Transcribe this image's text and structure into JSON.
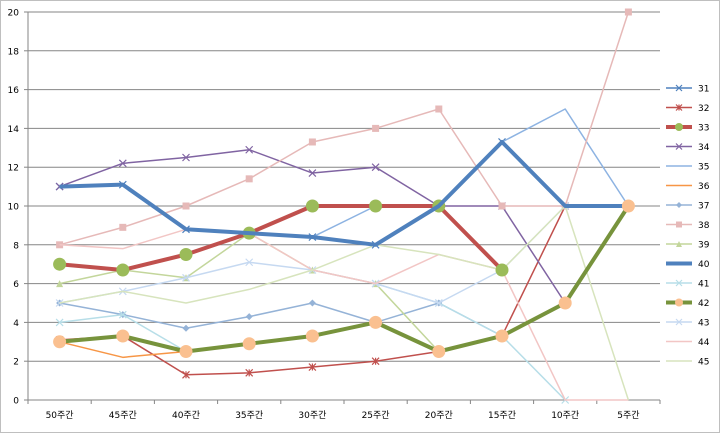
{
  "chart_data": {
    "type": "line",
    "title": "",
    "xlabel": "",
    "ylabel": "",
    "ylim": [
      0,
      20
    ],
    "yticks": [
      "0",
      "2",
      "4",
      "6",
      "8",
      "10",
      "12",
      "14",
      "16",
      "18",
      "20"
    ],
    "categories": [
      "50주간",
      "45주간",
      "40주간",
      "35주간",
      "30주간",
      "25주간",
      "20주간",
      "15주간",
      "10주간",
      "5주간"
    ],
    "grid": true,
    "legend_position": "right",
    "series": [
      {
        "name": "31",
        "color": "#4f81bd",
        "marker": "x",
        "width": 1.5,
        "values": [
          11,
          11.1,
          8.8,
          8.6,
          8.4,
          8,
          10,
          13.3,
          10,
          10
        ]
      },
      {
        "name": "32",
        "color": "#c0504d",
        "marker": "star",
        "width": 1.5,
        "values": [
          3.1,
          3.3,
          1.3,
          1.4,
          1.7,
          2,
          2.5,
          3.3,
          10,
          null
        ]
      },
      {
        "name": "33",
        "color": "#c0504d",
        "marker": "circle",
        "width": 4,
        "values": [
          7,
          6.7,
          7.5,
          8.6,
          10,
          10,
          10,
          6.7,
          null,
          null
        ]
      },
      {
        "name": "34",
        "color": "#8064a2",
        "marker": "x",
        "width": 1.5,
        "values": [
          11,
          12.2,
          12.5,
          12.9,
          11.7,
          12,
          10,
          10,
          5,
          null
        ]
      },
      {
        "name": "35",
        "color": "#8db3e2",
        "marker": "none",
        "width": 1.5,
        "values": [
          null,
          null,
          null,
          null,
          8.4,
          10,
          10,
          13.3,
          15,
          10
        ]
      },
      {
        "name": "36",
        "color": "#f79646",
        "marker": "none",
        "width": 1.5,
        "values": [
          3,
          2.2,
          2.5,
          null,
          null,
          null,
          null,
          null,
          null,
          null
        ]
      },
      {
        "name": "37",
        "color": "#95b3d7",
        "marker": "diamond",
        "width": 1.5,
        "values": [
          5,
          4.4,
          3.7,
          4.3,
          5,
          4,
          5,
          3.3,
          null,
          null
        ]
      },
      {
        "name": "38",
        "color": "#e6b9b8",
        "marker": "square",
        "width": 1.5,
        "values": [
          8,
          8.9,
          10,
          11.4,
          13.3,
          14,
          15,
          10,
          10,
          20
        ]
      },
      {
        "name": "39",
        "color": "#c3d69b",
        "marker": "triangle",
        "width": 1.5,
        "values": [
          6,
          6.7,
          6.3,
          8.6,
          6.7,
          6,
          2.5,
          null,
          null,
          null
        ]
      },
      {
        "name": "40",
        "color": "#4f81bd",
        "marker": "none",
        "width": 4,
        "values": [
          11,
          11.1,
          8.8,
          8.6,
          8.4,
          8,
          10,
          13.3,
          10,
          10
        ]
      },
      {
        "name": "41",
        "color": "#b7dee8",
        "marker": "x",
        "width": 1.5,
        "values": [
          4,
          4.4,
          2.5,
          null,
          null,
          6,
          5,
          3.3,
          0,
          null
        ]
      },
      {
        "name": "42",
        "color": "#77933c",
        "marker": "circle",
        "width": 4,
        "values": [
          3,
          3.3,
          2.5,
          2.9,
          3.3,
          4,
          2.5,
          3.3,
          5,
          10
        ]
      },
      {
        "name": "43",
        "color": "#c6d9f1",
        "marker": "x",
        "width": 1.5,
        "values": [
          5,
          5.6,
          6.3,
          7.1,
          6.7,
          6,
          5,
          6.7,
          10,
          null
        ]
      },
      {
        "name": "44",
        "color": "#f2c6c5",
        "marker": "none",
        "width": 1.5,
        "values": [
          8,
          7.8,
          8.8,
          8.6,
          6.7,
          6,
          7.5,
          6.7,
          0,
          0
        ]
      },
      {
        "name": "45",
        "color": "#d7e4bd",
        "marker": "none",
        "width": 1.5,
        "values": [
          5,
          5.6,
          5,
          5.7,
          6.7,
          8,
          7.5,
          6.7,
          10,
          0
        ]
      }
    ]
  }
}
